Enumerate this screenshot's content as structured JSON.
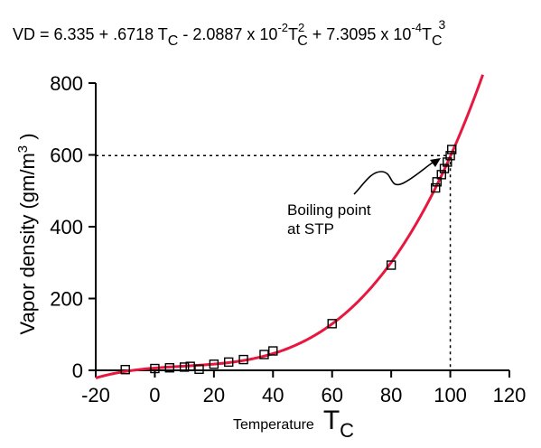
{
  "chart_data": {
    "type": "scatter",
    "title_parts": {
      "lhs": "VD = 6.335 + .6718 T",
      "c1_sub": "C",
      "part2": " - 2.0887 x 10",
      "exp1": "-2",
      "t2": "T",
      "c2_sup": "2",
      "c2_sub": "C",
      "part3": "  + 7.3095 x 10",
      "exp2": "-4",
      "t3": "T",
      "c3_sup": "3",
      "c3_sub": "C"
    },
    "ylabel": {
      "main": "Vapor density (gm/m",
      "sup": "3",
      "tail": " )"
    },
    "xlabel": {
      "word": "Temperature",
      "symbol": "T",
      "sub": "C"
    },
    "xlim": [
      -20,
      120
    ],
    "ylim": [
      0,
      800
    ],
    "xticks": [
      -20,
      0,
      20,
      40,
      60,
      80,
      100,
      120
    ],
    "xtick_labels": [
      "-20",
      "0",
      "20",
      "40",
      "60",
      "80",
      "100",
      "120"
    ],
    "yticks": [
      0,
      200,
      400,
      600,
      800
    ],
    "ytick_labels": [
      "0",
      "200",
      "400",
      "600",
      "800"
    ],
    "grid": false,
    "fit": {
      "coefficients": [
        6.335,
        0.6718,
        -0.020887,
        0.00073095
      ],
      "x_range": [
        -20,
        111
      ],
      "color": "#e8173f"
    },
    "points": [
      {
        "x": -10,
        "y": 2
      },
      {
        "x": 0,
        "y": 5
      },
      {
        "x": 5,
        "y": 7
      },
      {
        "x": 10,
        "y": 9
      },
      {
        "x": 12,
        "y": 11
      },
      {
        "x": 15,
        "y": 3
      },
      {
        "x": 20,
        "y": 17
      },
      {
        "x": 25,
        "y": 23
      },
      {
        "x": 30,
        "y": 30
      },
      {
        "x": 37,
        "y": 44
      },
      {
        "x": 40,
        "y": 54
      },
      {
        "x": 60,
        "y": 130
      },
      {
        "x": 80,
        "y": 293
      },
      {
        "x": 95,
        "y": 508
      },
      {
        "x": 95.5,
        "y": 525
      },
      {
        "x": 97,
        "y": 545
      },
      {
        "x": 98,
        "y": 562
      },
      {
        "x": 99,
        "y": 580
      },
      {
        "x": 100,
        "y": 598
      },
      {
        "x": 100.5,
        "y": 615
      }
    ],
    "reference": {
      "x": 100,
      "y": 598
    },
    "annotation": {
      "line1": "Boiling point",
      "line2": "at STP"
    },
    "marker_color": "#000000"
  }
}
